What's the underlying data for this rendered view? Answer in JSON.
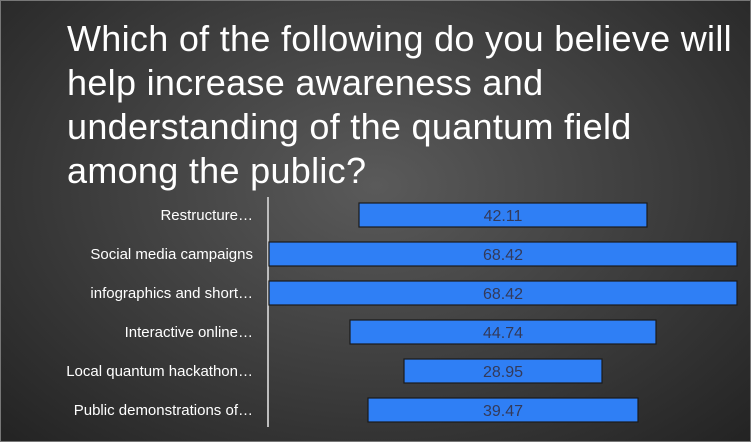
{
  "slide": {
    "title": "Which of the following do you believe will help increase awareness and understanding of the quantum field among the public?"
  },
  "chart_data": {
    "type": "bar",
    "orientation": "horizontal",
    "layout": "centered",
    "categories": [
      "Restructure…",
      "Social media campaigns",
      "infographics and short…",
      "Interactive online…",
      "Local quantum hackathon…",
      "Public demonstrations of…"
    ],
    "values": [
      42.11,
      68.42,
      68.42,
      44.74,
      28.95,
      39.47
    ],
    "bar_color": "#2f7ff5",
    "value_label_color": "#333a5a",
    "title": "",
    "xlabel": "",
    "ylabel": "",
    "grid": false,
    "legend": "none"
  }
}
